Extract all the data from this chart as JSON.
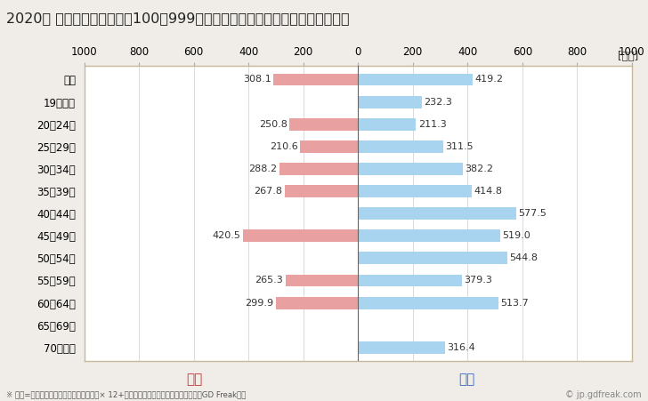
{
  "title": "2020年 民間企業（従業者数100～999人）フルタイム労働者の男女別平均年収",
  "ylabel_unit": "[万円]",
  "categories": [
    "全体",
    "19歳以下",
    "20～24歳",
    "25～29歳",
    "30～34歳",
    "35～39歳",
    "40～44歳",
    "45～49歳",
    "50～54歳",
    "55～59歳",
    "60～64歳",
    "65～69歳",
    "70歳以上"
  ],
  "female_values": [
    308.1,
    0,
    250.8,
    210.6,
    288.2,
    267.8,
    0,
    420.5,
    0,
    265.3,
    299.9,
    0,
    0
  ],
  "male_values": [
    419.2,
    232.3,
    211.3,
    311.5,
    382.2,
    414.8,
    577.5,
    519.0,
    544.8,
    379.3,
    513.7,
    0,
    316.4
  ],
  "female_color": "#e8a0a0",
  "male_color": "#a8d4f0",
  "female_label": "女性",
  "male_label": "男性",
  "female_label_color": "#cc3333",
  "male_label_color": "#3366cc",
  "xlim": [
    -1000,
    1000
  ],
  "xticks": [
    -1000,
    -800,
    -600,
    -400,
    -200,
    0,
    200,
    400,
    600,
    800,
    1000
  ],
  "xticklabels": [
    "1000",
    "800",
    "600",
    "400",
    "200",
    "0",
    "200",
    "400",
    "600",
    "800",
    "1000"
  ],
  "footnote": "※ 年収=「きまって支給する現金給与額」× 12+「年間賞与その他特別給与額」としてGD Freak推計",
  "watermark": "© jp.gdfreak.com",
  "background_color": "#f0ede8",
  "plot_background_color": "#ffffff",
  "bar_height": 0.55,
  "title_fontsize": 11.5,
  "tick_fontsize": 8.5,
  "label_fontsize": 9,
  "annotation_fontsize": 8,
  "legend_fontsize": 11
}
